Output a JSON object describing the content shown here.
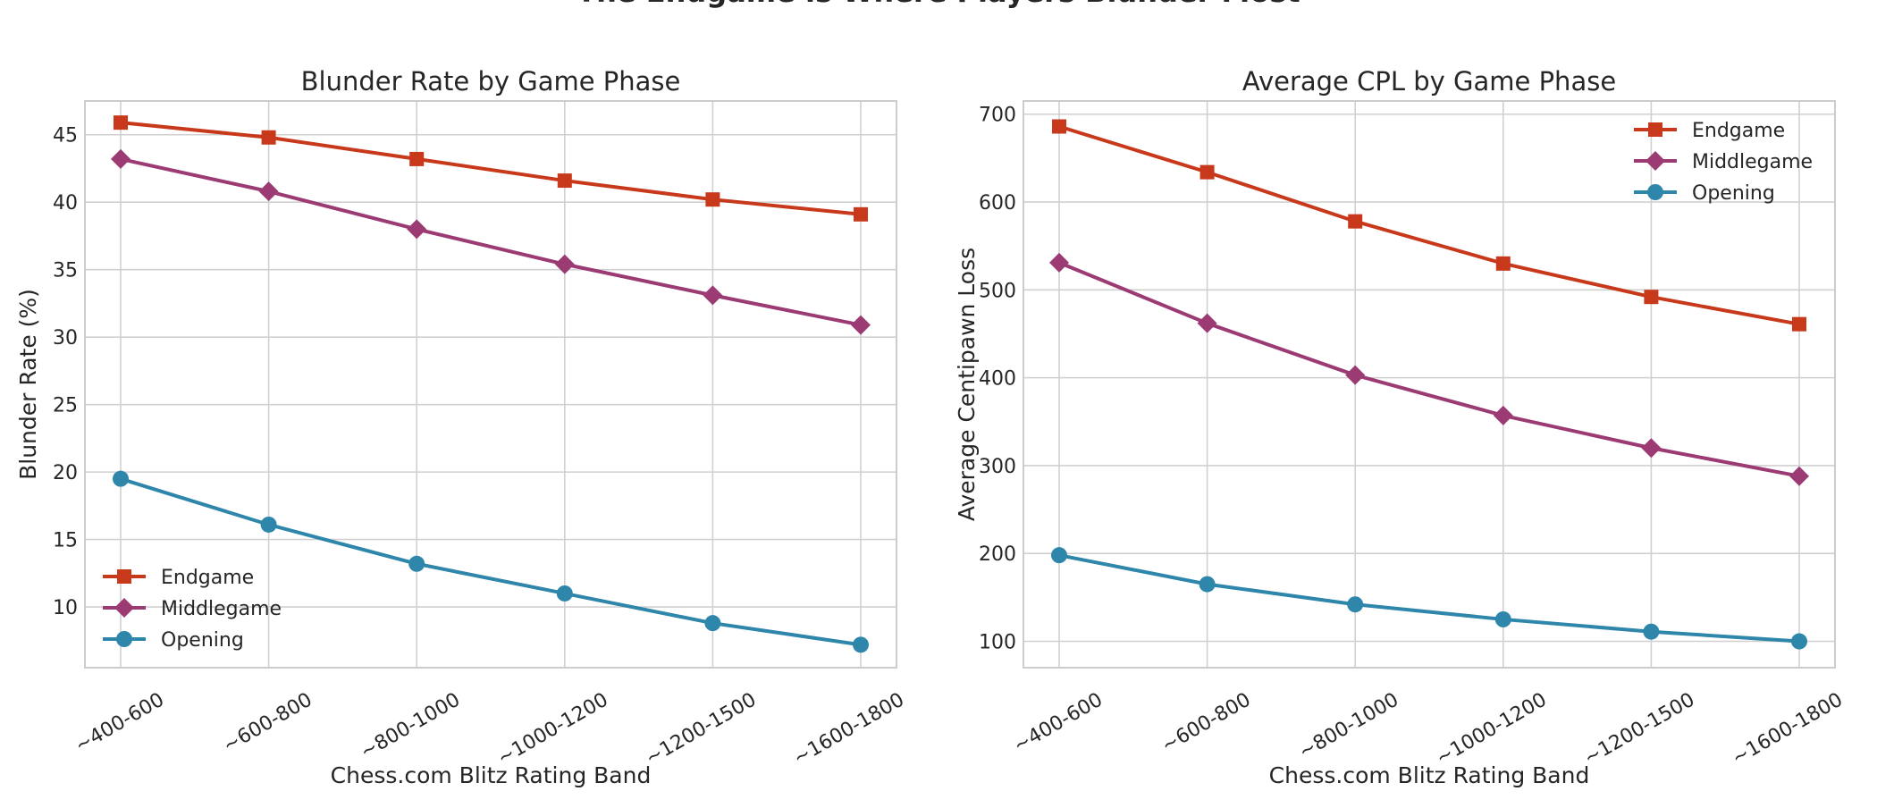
{
  "figure": {
    "title": "The Endgame is Where Players Blunder Most"
  },
  "chart_data": [
    {
      "type": "line",
      "title": "Blunder Rate by Game Phase",
      "xlabel": "Chess.com Blitz Rating Band",
      "ylabel": "Blunder Rate (%)",
      "categories": [
        "~400-600",
        "~600-800",
        "~800-1000",
        "~1000-1200",
        "~1200-1500",
        "~1600-1800"
      ],
      "ylim": [
        5.5,
        47.5
      ],
      "yticks": [
        10,
        15,
        20,
        25,
        30,
        35,
        40,
        45
      ],
      "grid": true,
      "legend": "lower-left",
      "series": [
        {
          "name": "Endgame",
          "color": "#c8391b",
          "marker": "square",
          "values": [
            45.9,
            44.8,
            43.2,
            41.6,
            40.2,
            39.1
          ]
        },
        {
          "name": "Middlegame",
          "color": "#9b3a73",
          "marker": "diamond",
          "values": [
            43.2,
            40.8,
            38.0,
            35.4,
            33.1,
            30.9
          ]
        },
        {
          "name": "Opening",
          "color": "#2e86ab",
          "marker": "circle",
          "values": [
            19.5,
            16.1,
            13.2,
            11.0,
            8.8,
            7.2
          ]
        }
      ]
    },
    {
      "type": "line",
      "title": "Average CPL by Game Phase",
      "xlabel": "Chess.com Blitz Rating Band",
      "ylabel": "Average Centipawn Loss",
      "categories": [
        "~400-600",
        "~600-800",
        "~800-1000",
        "~1000-1200",
        "~1200-1500",
        "~1600-1800"
      ],
      "ylim": [
        70,
        715
      ],
      "yticks": [
        100,
        200,
        300,
        400,
        500,
        600,
        700
      ],
      "grid": true,
      "legend": "upper-right",
      "series": [
        {
          "name": "Endgame",
          "color": "#c8391b",
          "marker": "square",
          "values": [
            686,
            634,
            578,
            530,
            492,
            461
          ]
        },
        {
          "name": "Middlegame",
          "color": "#9b3a73",
          "marker": "diamond",
          "values": [
            531,
            462,
            403,
            357,
            320,
            288
          ]
        },
        {
          "name": "Opening",
          "color": "#2e86ab",
          "marker": "circle",
          "values": [
            198,
            165,
            142,
            125,
            111,
            100
          ]
        }
      ]
    }
  ]
}
